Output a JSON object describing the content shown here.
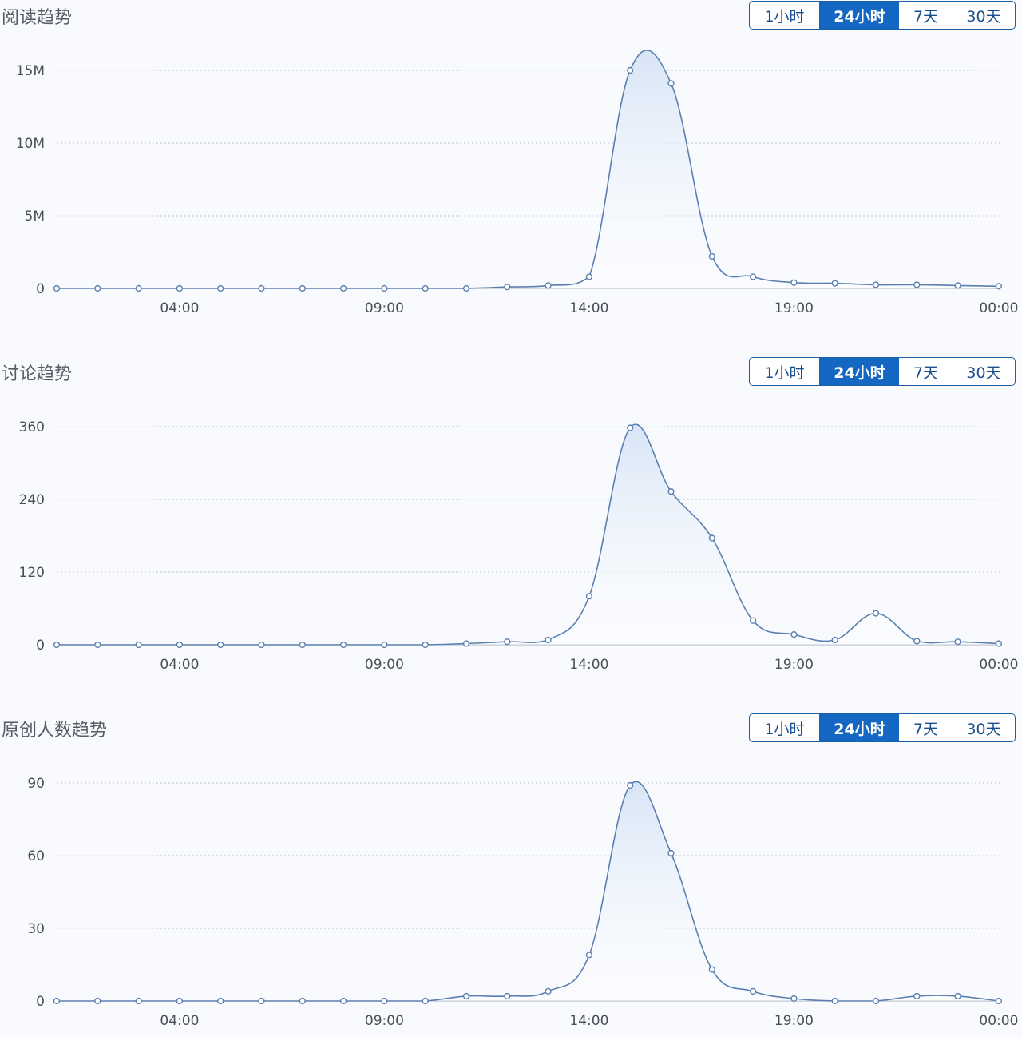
{
  "panels": [
    {
      "title": "阅读趋势",
      "range_buttons": [
        "1小时",
        "24小时",
        "7天",
        "30天"
      ],
      "active_range": "24小时"
    },
    {
      "title": "讨论趋势",
      "range_buttons": [
        "1小时",
        "24小时",
        "7天",
        "30天"
      ],
      "active_range": "24小时"
    },
    {
      "title": "原创人数趋势",
      "range_buttons": [
        "1小时",
        "24小时",
        "7天",
        "30天"
      ],
      "active_range": "24小时"
    }
  ],
  "colors": {
    "line": "#5b7fb0",
    "area_top": "#d6e4f6",
    "active_button": "#1467c2",
    "button_border": "#1a5fa8"
  },
  "chart_data": [
    {
      "type": "area",
      "title": "阅读趋势",
      "xlabel": "",
      "ylabel": "",
      "x_ticks": [
        "04:00",
        "09:00",
        "14:00",
        "19:00",
        "00:00"
      ],
      "x_tick_indices": [
        3,
        8,
        13,
        18,
        23
      ],
      "y_tick_values": [
        0,
        5,
        10,
        15
      ],
      "y_tick_labels": [
        "0",
        "5M",
        "10M",
        "15M"
      ],
      "ylim": [
        0,
        15
      ],
      "unit": "M",
      "grid": true,
      "values": [
        0,
        0,
        0,
        0,
        0,
        0,
        0,
        0,
        0,
        0,
        0,
        0.1,
        0.2,
        0.8,
        15.0,
        14.1,
        2.2,
        0.8,
        0.4,
        0.35,
        0.25,
        0.25,
        0.2,
        0.15
      ]
    },
    {
      "type": "area",
      "title": "讨论趋势",
      "xlabel": "",
      "ylabel": "",
      "x_ticks": [
        "04:00",
        "09:00",
        "14:00",
        "19:00",
        "00:00"
      ],
      "x_tick_indices": [
        3,
        8,
        13,
        18,
        23
      ],
      "y_tick_values": [
        0,
        120,
        240,
        360
      ],
      "y_tick_labels": [
        "0",
        "120",
        "240",
        "360"
      ],
      "ylim": [
        0,
        360
      ],
      "grid": true,
      "values": [
        0,
        0,
        0,
        0,
        0,
        0,
        0,
        0,
        0,
        0,
        2,
        5,
        8,
        80,
        358,
        253,
        176,
        40,
        17,
        8,
        52,
        6,
        5,
        2
      ]
    },
    {
      "type": "area",
      "title": "原创人数趋势",
      "xlabel": "",
      "ylabel": "",
      "x_ticks": [
        "04:00",
        "09:00",
        "14:00",
        "19:00",
        "00:00"
      ],
      "x_tick_indices": [
        3,
        8,
        13,
        18,
        23
      ],
      "y_tick_values": [
        0,
        30,
        60,
        90
      ],
      "y_tick_labels": [
        "0",
        "30",
        "60",
        "90"
      ],
      "ylim": [
        0,
        90
      ],
      "grid": true,
      "values": [
        0,
        0,
        0,
        0,
        0,
        0,
        0,
        0,
        0,
        0,
        2,
        2,
        4,
        19,
        89,
        61,
        13,
        4,
        1,
        0,
        0,
        2,
        2,
        0
      ]
    }
  ]
}
